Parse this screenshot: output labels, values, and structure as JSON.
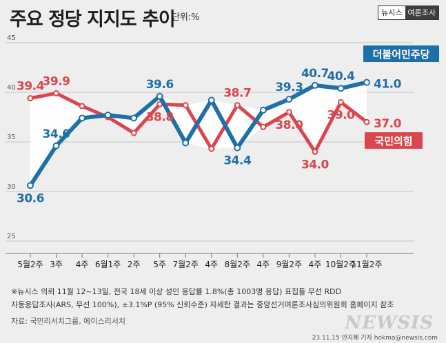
{
  "header": {
    "title": "주요 정당 지지도 추이",
    "unit": "단위:%",
    "brand_left": "뉴시스",
    "brand_right": "여론조사"
  },
  "chart_data": {
    "type": "line",
    "categories": [
      "5월2주",
      "3주",
      "4주",
      "6월1주",
      "2주",
      "5주",
      "7월2주",
      "4주",
      "8월2주",
      "4주",
      "9월2주",
      "4주",
      "10월2주",
      "11월2주"
    ],
    "ylim": [
      25,
      45
    ],
    "yticks": [
      25,
      30,
      35,
      40,
      45
    ],
    "grid": true,
    "series": [
      {
        "name": "더불어민주당",
        "color": "#1f6fa8",
        "values": [
          30.6,
          34.6,
          37.4,
          37.7,
          37.4,
          39.6,
          34.9,
          39.2,
          34.4,
          38.2,
          39.3,
          40.7,
          40.4,
          41.0
        ]
      },
      {
        "name": "국민의힘",
        "color": "#d9464d",
        "values": [
          39.4,
          39.9,
          38.6,
          37.5,
          35.9,
          38.8,
          38.7,
          34.3,
          38.7,
          36.5,
          38.0,
          34.0,
          39.0,
          37.0
        ]
      }
    ],
    "data_labels": [
      {
        "series": 0,
        "index": 0,
        "text": "30.6",
        "pos": "below"
      },
      {
        "series": 0,
        "index": 1,
        "text": "34.6",
        "pos": "above"
      },
      {
        "series": 0,
        "index": 5,
        "text": "39.6",
        "pos": "above"
      },
      {
        "series": 0,
        "index": 8,
        "text": "34.4",
        "pos": "below"
      },
      {
        "series": 0,
        "index": 10,
        "text": "39.3",
        "pos": "above"
      },
      {
        "series": 0,
        "index": 11,
        "text": "40.7",
        "pos": "above"
      },
      {
        "series": 0,
        "index": 12,
        "text": "40.4",
        "pos": "above"
      },
      {
        "series": 0,
        "index": 13,
        "text": "41.0",
        "pos": "right"
      },
      {
        "series": 1,
        "index": 0,
        "text": "39.4",
        "pos": "above"
      },
      {
        "series": 1,
        "index": 1,
        "text": "39.9",
        "pos": "above"
      },
      {
        "series": 1,
        "index": 5,
        "text": "38.8",
        "pos": "below"
      },
      {
        "series": 1,
        "index": 8,
        "text": "38.7",
        "pos": "above"
      },
      {
        "series": 1,
        "index": 10,
        "text": "38.0",
        "pos": "below"
      },
      {
        "series": 1,
        "index": 11,
        "text": "34.0",
        "pos": "below"
      },
      {
        "series": 1,
        "index": 12,
        "text": "39.0",
        "pos": "below"
      },
      {
        "series": 1,
        "index": 13,
        "text": "37.0",
        "pos": "right"
      }
    ]
  },
  "footnote": {
    "line1": "※뉴시스 의뢰 11월 12~13일, 전국 18세 이상 성인 응답률 1.8%(총 1003명 응답) 표집틀 무선 RDD",
    "line2": "자동응답조사(ARS, 무선 100%), ±3.1%P (95% 신뢰수준) 자세한 결과는 중앙선거여론조사심의위원회 홈페이지 참조",
    "source": "자료: 국민리서치그룹, 에이스리서치"
  },
  "credit": "23.11.15 안지혜 기자 hokma@newsis.com",
  "watermark": "NEWSIS"
}
